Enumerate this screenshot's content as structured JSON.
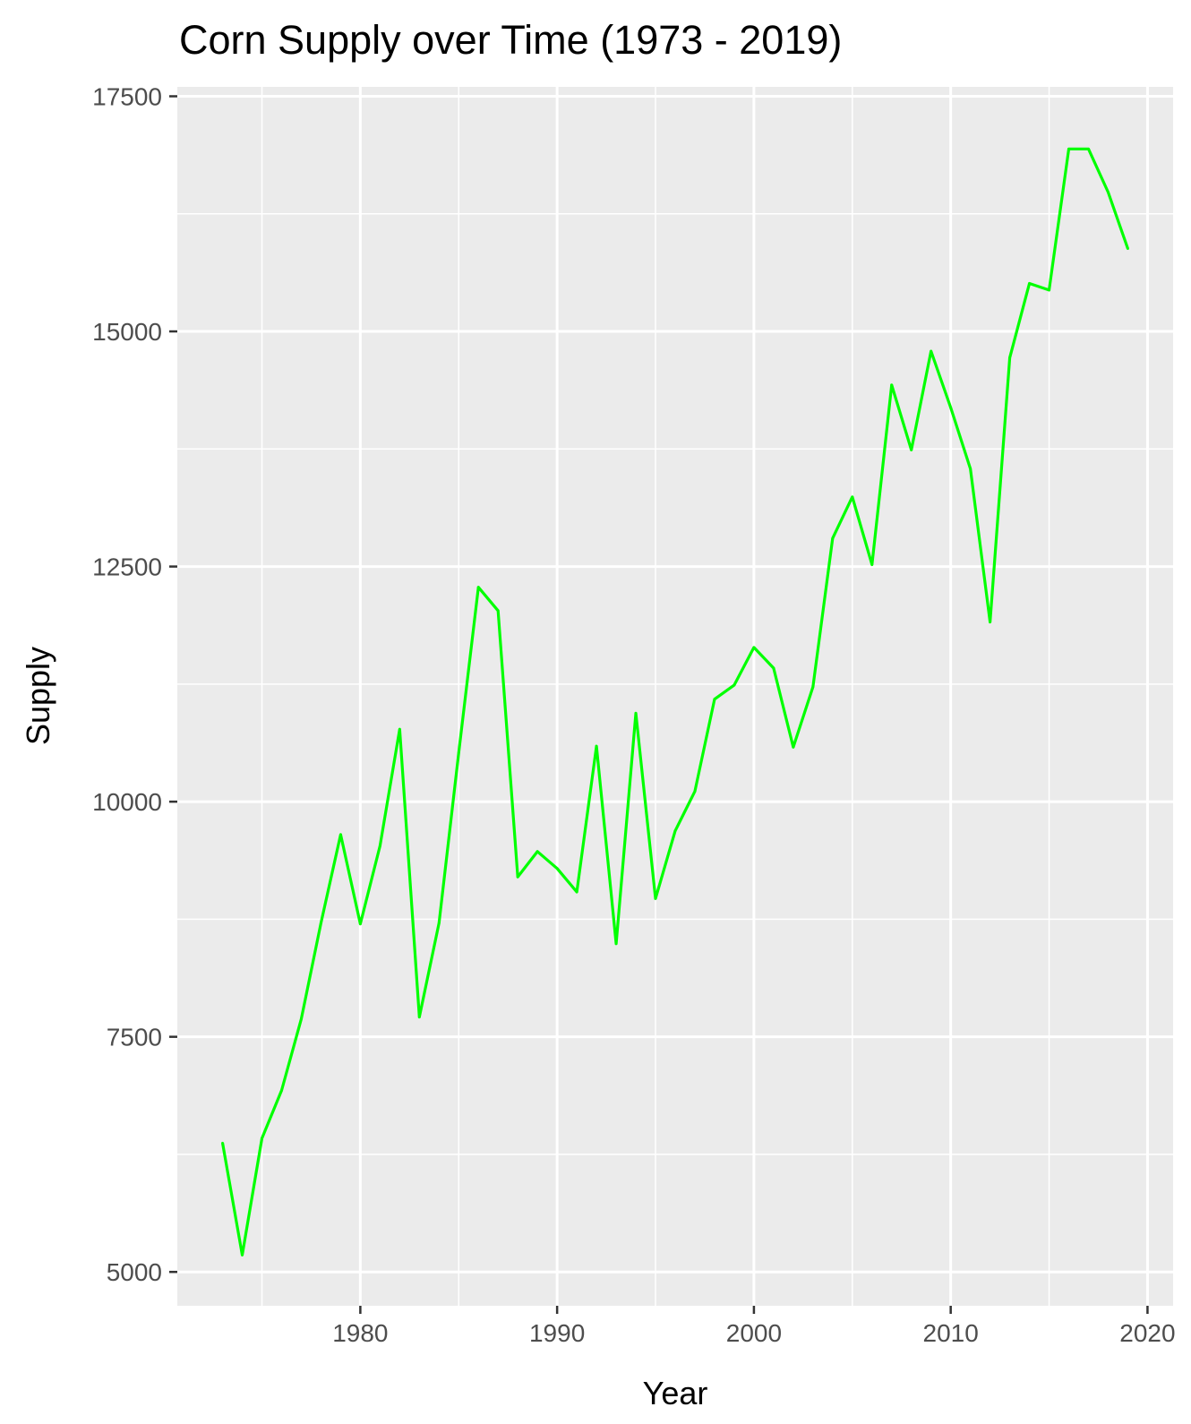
{
  "chart_data": {
    "type": "line",
    "title": "Corn Supply over Time (1973 - 2019)",
    "xlabel": "Year",
    "ylabel": "Supply",
    "xlim": [
      1970.7,
      2021.3
    ],
    "ylim": [
      4640,
      17600
    ],
    "x_ticks": [
      1980,
      1990,
      2000,
      2010,
      2020
    ],
    "y_ticks": [
      5000,
      7500,
      10000,
      12500,
      15000,
      17500
    ],
    "x_tick_labels": [
      "1980",
      "1990",
      "2000",
      "2010",
      "2020"
    ],
    "y_tick_labels": [
      "5000",
      "7500",
      "10000",
      "12500",
      "15000",
      "17500"
    ],
    "x_minor_ticks": [
      1975,
      1985,
      1995,
      2005,
      2015
    ],
    "y_minor_ticks": [
      6250,
      8750,
      11250,
      13750,
      16250
    ],
    "grid": true,
    "legend": "none",
    "colors": {
      "panel_background": "#ebebeb",
      "grid": "#ffffff",
      "line": "#00ff00"
    },
    "series": [
      {
        "x": [
          1973,
          1974,
          1975,
          1976,
          1977,
          1978,
          1979,
          1980,
          1981,
          1982,
          1983,
          1984,
          1985,
          1986,
          1987,
          1988,
          1989,
          1990,
          1991,
          1992,
          1993,
          1994,
          1995,
          1996,
          1997,
          1998,
          1999,
          2000,
          2001,
          2002,
          2003,
          2004,
          2005,
          2006,
          2007,
          2008,
          2009,
          2010,
          2011,
          2012,
          2013,
          2014,
          2015,
          2016,
          2017,
          2018,
          2019
        ],
        "values": [
          6370,
          5180,
          6420,
          6930,
          7690,
          8710,
          9650,
          8700,
          9530,
          10770,
          7710,
          8710,
          10520,
          12280,
          12030,
          9200,
          9470,
          9290,
          9040,
          10590,
          8490,
          10940,
          8970,
          9690,
          10110,
          11090,
          11240,
          11640,
          11420,
          10580,
          11220,
          12800,
          13240,
          12520,
          14430,
          13740,
          14790,
          14190,
          13540,
          11910,
          14720,
          15510,
          15440,
          16940,
          16940,
          16480,
          15880
        ]
      }
    ]
  }
}
